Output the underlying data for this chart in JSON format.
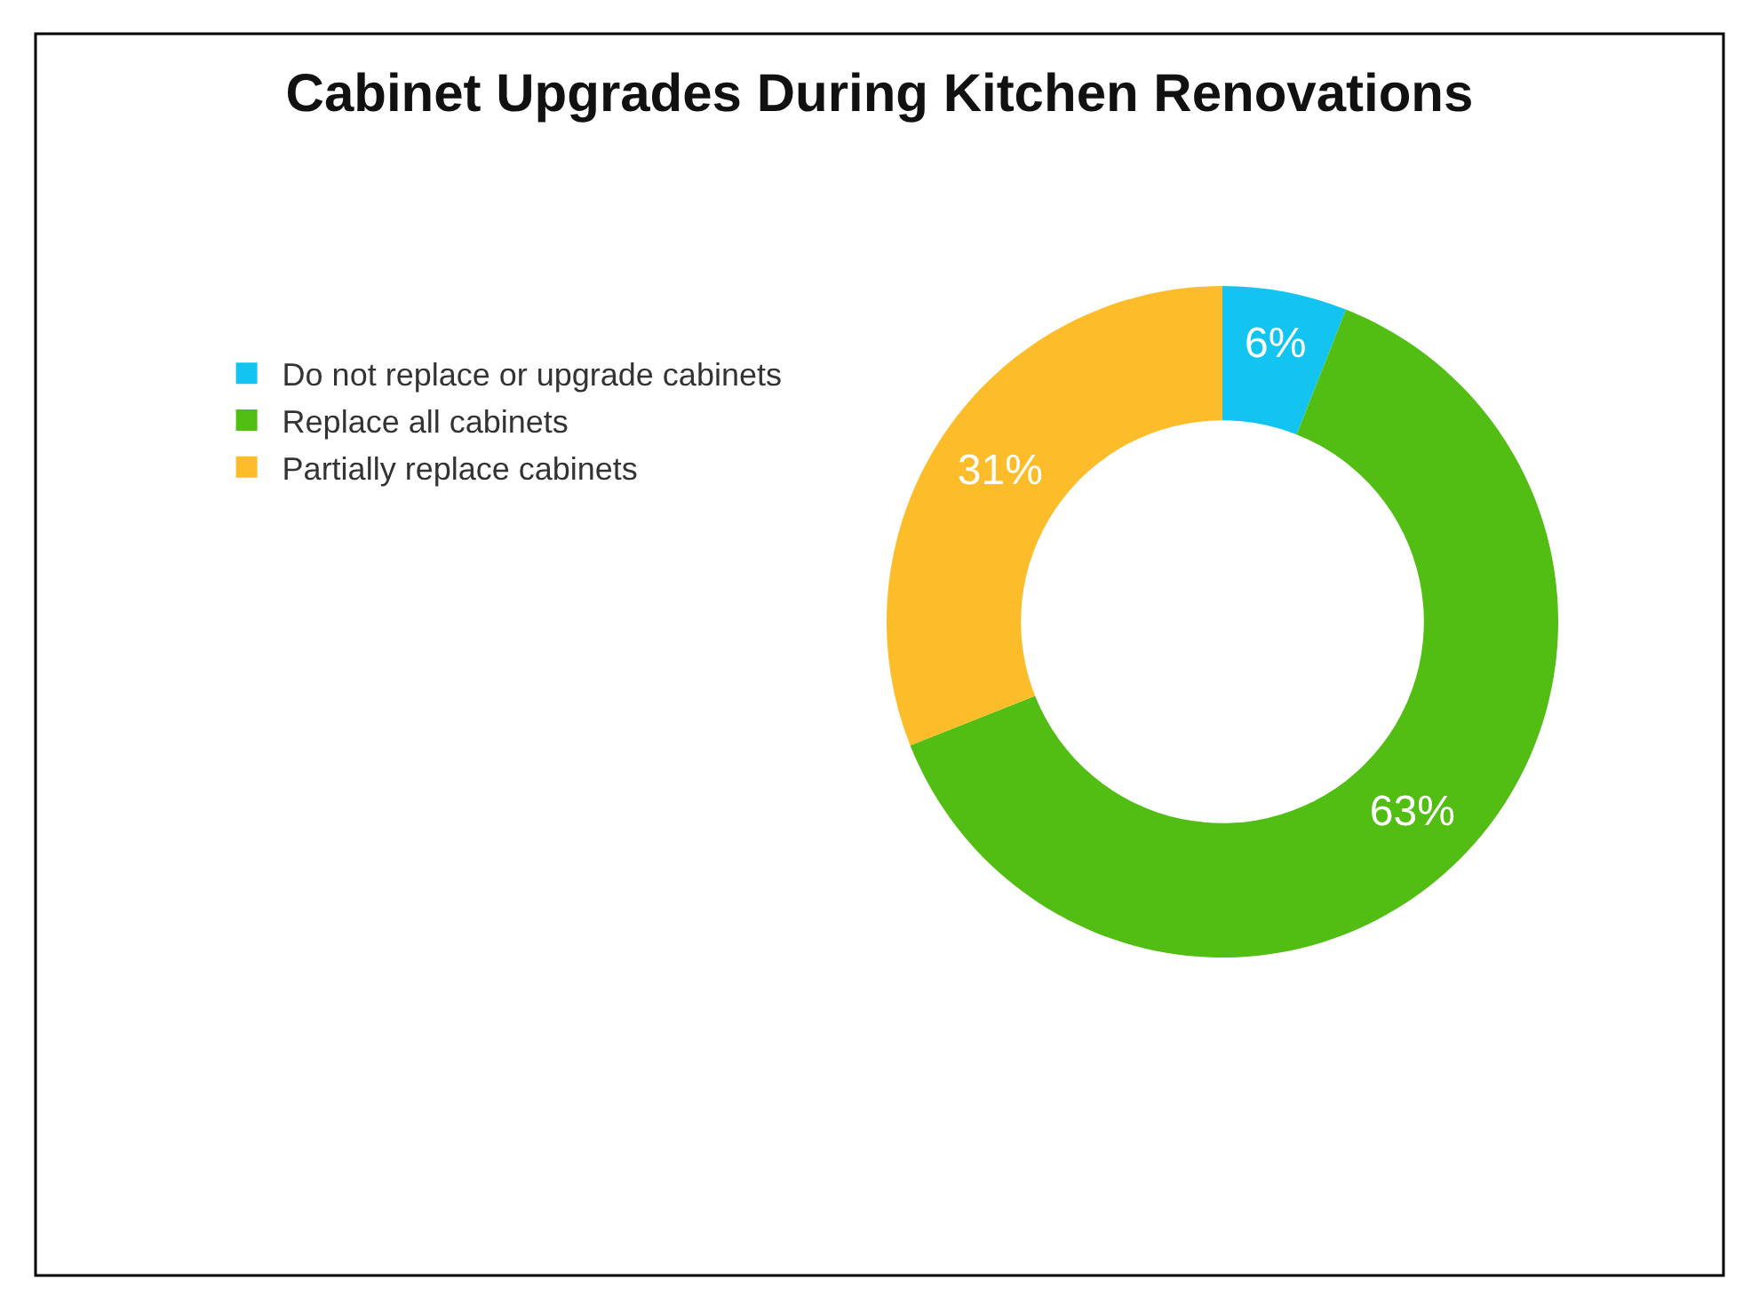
{
  "chart_data": {
    "type": "donut",
    "title": "Cabinet Upgrades During Kitchen Renovations",
    "categories": [
      "Do not replace or upgrade cabinets",
      "Replace all cabinets",
      "Partially replace cabinets"
    ],
    "values": [
      6,
      63,
      31
    ],
    "colors": [
      "#13c4f0",
      "#52bd13",
      "#fdbd2a"
    ],
    "value_labels": [
      "6%",
      "63%",
      "31%"
    ],
    "legend": "top left"
  }
}
